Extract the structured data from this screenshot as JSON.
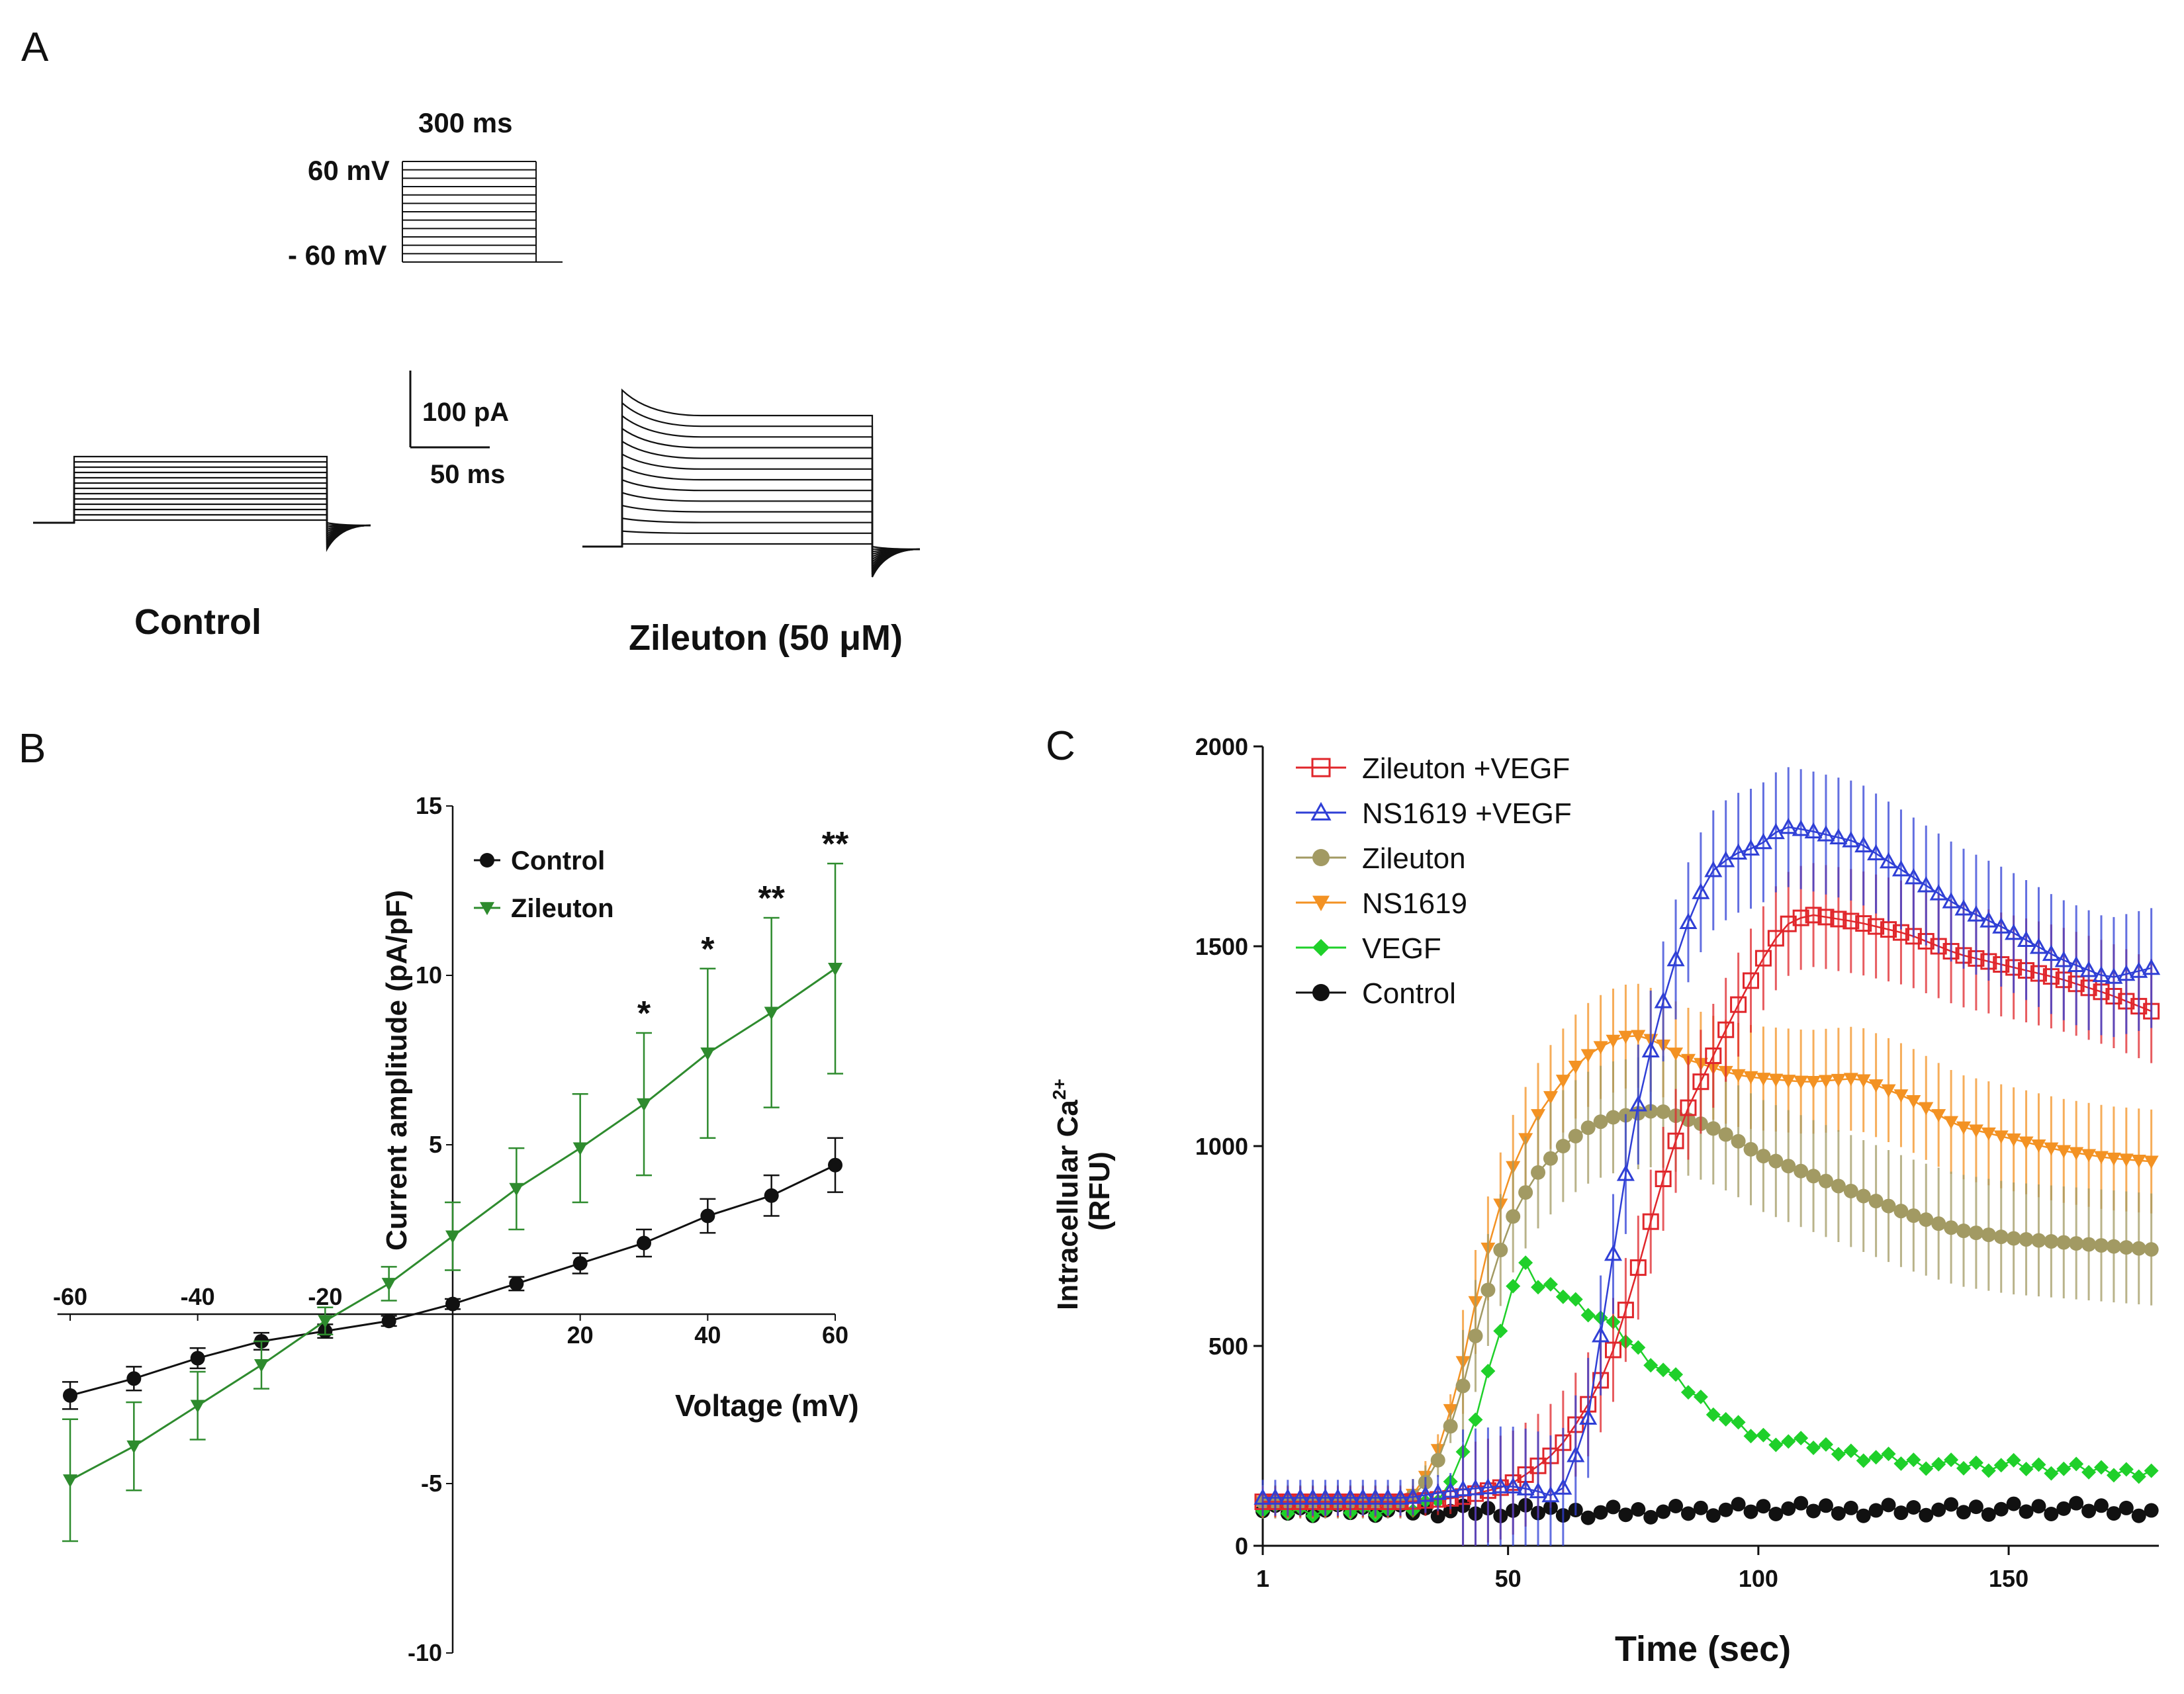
{
  "colors": {
    "black": "#111111",
    "green_b": "#2e8b2e",
    "red": "#e0262b",
    "blue": "#2f3fd6",
    "olive": "#a29a63",
    "orange": "#f39223",
    "green_c": "#1fd02a"
  },
  "panel_a": {
    "letter": "A",
    "protocol_time": "300 ms",
    "v_high": "60 mV",
    "v_low": "- 60 mV",
    "scale_current": "100 pA",
    "scale_time": "50 ms",
    "trace_labels": [
      "Control",
      "Zileuton (50 μM)"
    ],
    "n_sweeps": 13
  },
  "chart_data": [
    {
      "panel": "B",
      "type": "line",
      "xlabel": "Voltage (mV)",
      "ylabel": "Current amplitude (pA/pF)",
      "xlim": [
        -60,
        60
      ],
      "ylim": [
        -10,
        15
      ],
      "x_ticks": [
        -60,
        -40,
        -20,
        20,
        40,
        60
      ],
      "x_tick_labels": [
        "-60",
        "-40",
        "-20",
        "20",
        "40",
        "60"
      ],
      "y_ticks": [
        -10,
        -5,
        5,
        10,
        15
      ],
      "y_tick_labels": [
        "-10",
        "-5",
        "5",
        "10",
        "15"
      ],
      "x": [
        -60,
        -50,
        -40,
        -30,
        -20,
        -10,
        0,
        10,
        20,
        30,
        40,
        50,
        60
      ],
      "series": [
        {
          "name": "Control",
          "marker": "circle",
          "color": "#111111",
          "values": [
            -2.4,
            -1.9,
            -1.3,
            -0.8,
            -0.5,
            -0.2,
            0.3,
            0.9,
            1.5,
            2.1,
            2.9,
            3.5,
            4.4
          ],
          "errors": [
            0.4,
            0.35,
            0.3,
            0.25,
            0.2,
            0.15,
            0.15,
            0.2,
            0.3,
            0.4,
            0.5,
            0.6,
            0.8
          ]
        },
        {
          "name": "Zileuton",
          "marker": "triangle-down",
          "color": "#2e8b2e",
          "values": [
            -4.9,
            -3.9,
            -2.7,
            -1.5,
            -0.2,
            0.9,
            2.3,
            3.7,
            4.9,
            6.2,
            7.7,
            8.9,
            10.2
          ],
          "errors": [
            1.8,
            1.3,
            1.0,
            0.7,
            0.4,
            0.5,
            1.0,
            1.2,
            1.6,
            2.1,
            2.5,
            2.8,
            3.1
          ]
        }
      ],
      "annotations": [
        {
          "x": 30,
          "text": "*"
        },
        {
          "x": 40,
          "text": "*"
        },
        {
          "x": 50,
          "text": "**"
        },
        {
          "x": 60,
          "text": "**"
        }
      ]
    },
    {
      "panel": "C",
      "type": "line",
      "xlabel": "Time (sec)",
      "ylabel": "Intracellular Ca",
      "ylabel_sup": "2+",
      "ylabel_unit": "(RFU)",
      "xlim": [
        1,
        180
      ],
      "ylim": [
        0,
        2000
      ],
      "x_ticks": [
        1,
        50,
        100,
        150
      ],
      "x_tick_labels": [
        "1",
        "50",
        "100",
        "150"
      ],
      "y_ticks": [
        0,
        500,
        1000,
        1500,
        2000
      ],
      "y_tick_labels": [
        "0",
        "500",
        "1000",
        "1500",
        "2000"
      ],
      "series": [
        {
          "name": "Zileuton +VEGF",
          "marker": "square-open",
          "color": "#e0262b",
          "x": [
            1,
            30,
            40,
            50,
            55,
            60,
            65,
            70,
            75,
            80,
            85,
            90,
            95,
            100,
            105,
            110,
            120,
            130,
            140,
            150,
            160,
            170,
            180
          ],
          "values": [
            110,
            110,
            120,
            150,
            190,
            240,
            330,
            450,
            650,
            880,
            1070,
            1200,
            1330,
            1450,
            1550,
            1580,
            1560,
            1530,
            1480,
            1450,
            1420,
            1380,
            1330
          ],
          "error": 130
        },
        {
          "name": "NS1619 +VEGF",
          "marker": "triangle-up-open",
          "color": "#2f3fd6",
          "x": [
            1,
            30,
            40,
            50,
            55,
            60,
            62,
            66,
            70,
            75,
            80,
            85,
            90,
            95,
            100,
            105,
            110,
            120,
            130,
            140,
            150,
            160,
            170,
            180
          ],
          "values": [
            120,
            120,
            140,
            150,
            140,
            120,
            170,
            320,
            650,
            1050,
            1320,
            1530,
            1680,
            1730,
            1750,
            1800,
            1790,
            1760,
            1680,
            1600,
            1540,
            1470,
            1420,
            1450
          ],
          "error": 150
        },
        {
          "name": "Zileuton",
          "marker": "circle",
          "color": "#a29a63",
          "x": [
            1,
            30,
            35,
            40,
            45,
            50,
            55,
            60,
            65,
            70,
            75,
            80,
            85,
            90,
            95,
            100,
            110,
            120,
            130,
            140,
            150,
            160,
            170,
            180
          ],
          "values": [
            110,
            110,
            180,
            350,
            600,
            800,
            920,
            990,
            1040,
            1070,
            1080,
            1090,
            1070,
            1050,
            1020,
            980,
            930,
            880,
            830,
            790,
            770,
            760,
            750,
            740
          ],
          "error": 140
        },
        {
          "name": "NS1619",
          "marker": "triangle-down",
          "color": "#f39223",
          "x": [
            1,
            30,
            35,
            40,
            45,
            50,
            55,
            60,
            65,
            70,
            75,
            80,
            85,
            90,
            95,
            100,
            110,
            120,
            130,
            140,
            150,
            160,
            170,
            180
          ],
          "values": [
            110,
            110,
            200,
            400,
            700,
            920,
            1060,
            1150,
            1220,
            1260,
            1280,
            1260,
            1220,
            1200,
            1180,
            1170,
            1160,
            1170,
            1120,
            1050,
            1020,
            990,
            970,
            960
          ],
          "error": 130
        },
        {
          "name": "VEGF",
          "marker": "diamond",
          "color": "#1fd02a",
          "x": [
            1,
            30,
            35,
            40,
            45,
            50,
            53,
            56,
            60,
            65,
            70,
            75,
            80,
            85,
            90,
            95,
            100,
            110,
            120,
            130,
            140,
            150,
            160,
            170,
            180
          ],
          "values": [
            90,
            90,
            110,
            180,
            380,
            620,
            700,
            650,
            640,
            600,
            560,
            500,
            450,
            400,
            350,
            300,
            270,
            250,
            230,
            210,
            200,
            200,
            190,
            185,
            190
          ],
          "error": 0
        },
        {
          "name": "Control",
          "marker": "circle",
          "color": "#111111",
          "x": [
            1,
            20,
            40,
            60,
            80,
            100,
            120,
            140,
            160,
            180
          ],
          "values": [
            90,
            90,
            85,
            85,
            85,
            90,
            90,
            90,
            90,
            90
          ],
          "error": 0
        }
      ]
    }
  ]
}
